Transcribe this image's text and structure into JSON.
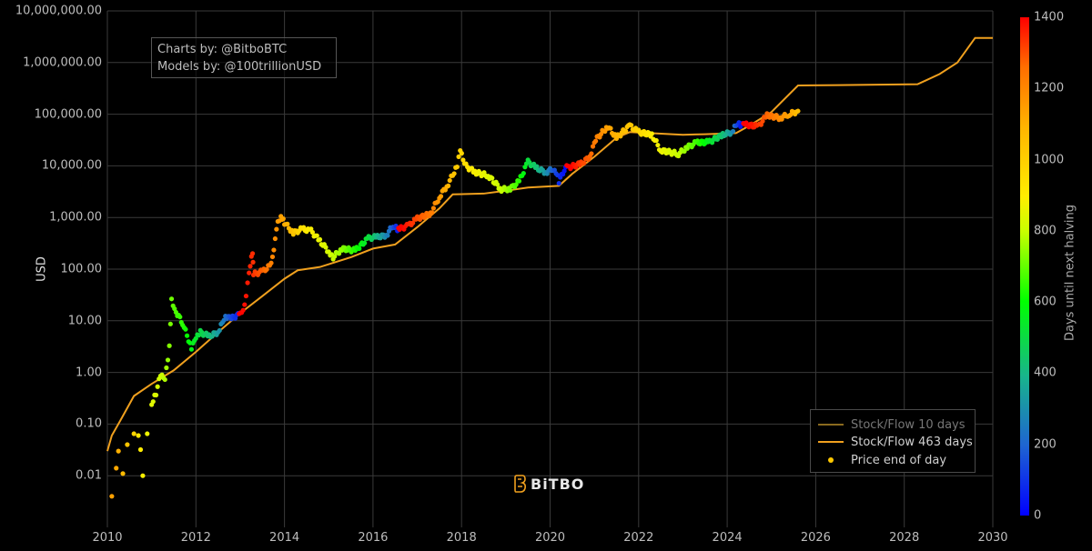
{
  "chart_data": {
    "type": "scatter",
    "title": "",
    "xlabel": "",
    "ylabel": "USD",
    "yscale": "log",
    "xlim": [
      2010,
      2030
    ],
    "ylim": [
      0.001,
      10000000
    ],
    "grid": true,
    "x_ticks": [
      "2010",
      "2012",
      "2014",
      "2016",
      "2018",
      "2020",
      "2022",
      "2024",
      "2026",
      "2028",
      "2030"
    ],
    "y_ticks": [
      "10,000,000.00",
      "1,000,000.00",
      "100,000.00",
      "10,000.00",
      "1,000.00",
      "100.00",
      "10.00",
      "1.00",
      "0.10",
      "0.01"
    ],
    "legend": [
      {
        "name": "Stock/Flow 10 days",
        "type": "line",
        "color": "#8a6a1e",
        "dimmed": true
      },
      {
        "name": "Stock/Flow 463 days",
        "type": "line",
        "color": "#f0a01e"
      },
      {
        "name": "Price end of day",
        "type": "marker",
        "color": "#ffc800"
      }
    ],
    "legend_position": "bottom-right",
    "colorbar": {
      "label": "Days until next halving",
      "ticks": [
        "0",
        "200",
        "400",
        "600",
        "800",
        "1000",
        "1200",
        "1400"
      ],
      "range": [
        0,
        1400
      ],
      "colorscale": [
        "#0000ff",
        "#1e64d2",
        "#18b48c",
        "#00ff00",
        "#c8ff00",
        "#ffee00",
        "#ffb400",
        "#ff6e00",
        "#ff0000"
      ]
    },
    "series": [
      {
        "name": "Stock/Flow 463 days",
        "points": [
          [
            2010.0,
            0.03
          ],
          [
            2010.1,
            0.06
          ],
          [
            2010.3,
            0.12
          ],
          [
            2010.6,
            0.35
          ],
          [
            2011.0,
            0.6
          ],
          [
            2011.5,
            1.1
          ],
          [
            2012.0,
            2.5
          ],
          [
            2012.5,
            6
          ],
          [
            2013.0,
            14
          ],
          [
            2013.5,
            30
          ],
          [
            2014.0,
            65
          ],
          [
            2014.3,
            95
          ],
          [
            2014.8,
            110
          ],
          [
            2015.5,
            170
          ],
          [
            2016.0,
            250
          ],
          [
            2016.5,
            300
          ],
          [
            2017.0,
            650
          ],
          [
            2017.5,
            1500
          ],
          [
            2017.8,
            2800
          ],
          [
            2018.5,
            2900
          ],
          [
            2019.0,
            3300
          ],
          [
            2019.5,
            3800
          ],
          [
            2020.2,
            4100
          ],
          [
            2020.5,
            7000
          ],
          [
            2021.0,
            15000
          ],
          [
            2021.5,
            35000
          ],
          [
            2021.8,
            45000
          ],
          [
            2022.5,
            42000
          ],
          [
            2023.0,
            40000
          ],
          [
            2023.5,
            41000
          ],
          [
            2024.2,
            43000
          ],
          [
            2024.5,
            60000
          ],
          [
            2025.0,
            110000
          ],
          [
            2025.6,
            360000
          ],
          [
            2026.5,
            365000
          ],
          [
            2028.3,
            380000
          ],
          [
            2028.8,
            600000
          ],
          [
            2029.2,
            1000000
          ],
          [
            2029.6,
            3000000
          ],
          [
            2030.0,
            3000000
          ]
        ]
      },
      {
        "name": "Price end of day",
        "points": [
          [
            2010.1,
            0.004,
            1100
          ],
          [
            2010.2,
            0.014,
            1080
          ],
          [
            2010.25,
            0.03,
            1060
          ],
          [
            2010.35,
            0.011,
            1030
          ],
          [
            2010.45,
            0.04,
            1000
          ],
          [
            2010.6,
            0.065,
            950
          ],
          [
            2010.7,
            0.06,
            900
          ],
          [
            2010.75,
            0.032,
            880
          ],
          [
            2010.8,
            0.01,
            860
          ],
          [
            2010.9,
            0.065,
            820
          ],
          [
            2011.0,
            0.25,
            780
          ],
          [
            2011.1,
            0.4,
            750
          ],
          [
            2011.2,
            0.9,
            720
          ],
          [
            2011.3,
            0.7,
            680
          ],
          [
            2011.4,
            3,
            640
          ],
          [
            2011.45,
            25,
            620
          ],
          [
            2011.55,
            15,
            590
          ],
          [
            2011.7,
            9,
            560
          ],
          [
            2011.9,
            3,
            500
          ],
          [
            2012.0,
            4.5,
            470
          ],
          [
            2012.1,
            6,
            440
          ],
          [
            2012.3,
            5,
            380
          ],
          [
            2012.5,
            6,
            300
          ],
          [
            2012.6,
            10,
            240
          ],
          [
            2012.7,
            12,
            180
          ],
          [
            2012.8,
            11,
            120
          ],
          [
            2012.95,
            13,
            60
          ],
          [
            2013.0,
            13,
            1400
          ],
          [
            2013.1,
            20,
            1380
          ],
          [
            2013.2,
            90,
            1350
          ],
          [
            2013.28,
            220,
            1330
          ],
          [
            2013.3,
            80,
            1320
          ],
          [
            2013.5,
            90,
            1250
          ],
          [
            2013.7,
            120,
            1180
          ],
          [
            2013.85,
            800,
            1120
          ],
          [
            2013.92,
            1100,
            1100
          ],
          [
            2014.0,
            800,
            1080
          ],
          [
            2014.2,
            500,
            1000
          ],
          [
            2014.4,
            600,
            920
          ],
          [
            2014.6,
            550,
            860
          ],
          [
            2014.8,
            350,
            800
          ],
          [
            2015.0,
            220,
            740
          ],
          [
            2015.1,
            170,
            700
          ],
          [
            2015.3,
            250,
            650
          ],
          [
            2015.6,
            230,
            550
          ],
          [
            2015.9,
            400,
            450
          ],
          [
            2016.1,
            420,
            350
          ],
          [
            2016.3,
            450,
            250
          ],
          [
            2016.45,
            700,
            150
          ],
          [
            2016.55,
            600,
            50
          ],
          [
            2016.6,
            600,
            1420
          ],
          [
            2016.8,
            700,
            1350
          ],
          [
            2017.0,
            950,
            1280
          ],
          [
            2017.3,
            1200,
            1200
          ],
          [
            2017.5,
            2500,
            1120
          ],
          [
            2017.7,
            4500,
            1050
          ],
          [
            2017.9,
            10000,
            980
          ],
          [
            2017.97,
            19000,
            960
          ],
          [
            2018.1,
            10000,
            920
          ],
          [
            2018.3,
            7500,
            860
          ],
          [
            2018.6,
            6500,
            780
          ],
          [
            2018.9,
            3500,
            700
          ],
          [
            2019.1,
            3600,
            640
          ],
          [
            2019.3,
            5000,
            560
          ],
          [
            2019.5,
            12000,
            450
          ],
          [
            2019.7,
            9000,
            380
          ],
          [
            2019.9,
            7500,
            280
          ],
          [
            2020.1,
            9000,
            140
          ],
          [
            2020.2,
            5000,
            80
          ],
          [
            2020.35,
            9500,
            20
          ],
          [
            2020.4,
            9200,
            1440
          ],
          [
            2020.7,
            11000,
            1300
          ],
          [
            2020.9,
            15000,
            1240
          ],
          [
            2021.0,
            30000,
            1200
          ],
          [
            2021.3,
            58000,
            1100
          ],
          [
            2021.5,
            35000,
            1050
          ],
          [
            2021.8,
            60000,
            1000
          ],
          [
            2022.0,
            45000,
            950
          ],
          [
            2022.3,
            40000,
            880
          ],
          [
            2022.5,
            20000,
            820
          ],
          [
            2022.9,
            17000,
            700
          ],
          [
            2023.1,
            23000,
            640
          ],
          [
            2023.3,
            28000,
            580
          ],
          [
            2023.6,
            29000,
            480
          ],
          [
            2023.9,
            40000,
            380
          ],
          [
            2024.1,
            45000,
            280
          ],
          [
            2024.2,
            65000,
            150
          ],
          [
            2024.3,
            62000,
            40
          ],
          [
            2024.4,
            63000,
            1420
          ],
          [
            2024.7,
            58000,
            1320
          ],
          [
            2024.9,
            95000,
            1240
          ],
          [
            2025.2,
            85000,
            1150
          ],
          [
            2025.4,
            100000,
            1100
          ],
          [
            2025.6,
            115000,
            1020
          ]
        ]
      }
    ]
  },
  "annotation": {
    "line1": "Charts by: @BitboBTC",
    "line2": "Models by: @100trillionUSD"
  },
  "logo": {
    "text": "BiTBO",
    "color": "#f0a01e"
  }
}
